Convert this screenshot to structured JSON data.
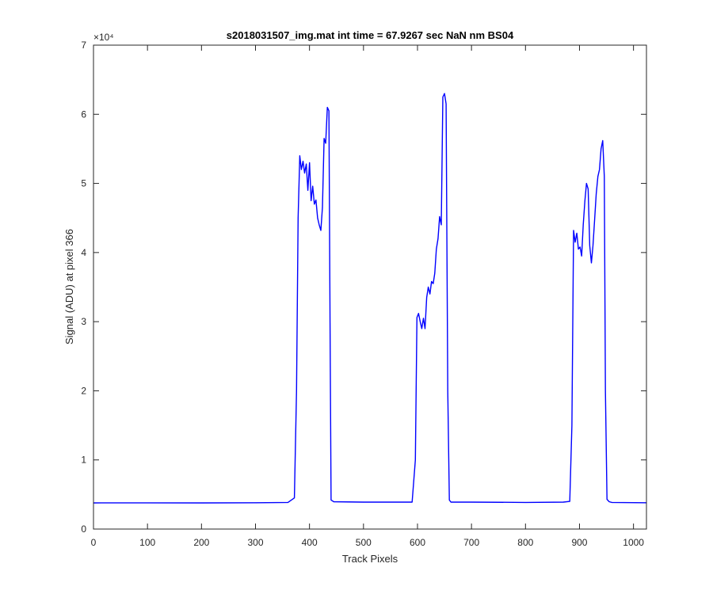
{
  "chart_data": {
    "type": "line",
    "title": "s2018031507_img.mat int time = 67.9267 sec  NaN nm BS04",
    "xlabel": "Track Pixels",
    "ylabel": "Signal (ADU) at pixel 366",
    "y_exponent_label": "×10⁴",
    "xlim": [
      0,
      1024
    ],
    "ylim": [
      0,
      70000
    ],
    "x_ticks": [
      "0",
      "100",
      "200",
      "300",
      "400",
      "500",
      "600",
      "700",
      "800",
      "900",
      "1000"
    ],
    "y_ticks": [
      "0",
      "1",
      "2",
      "3",
      "4",
      "5",
      "6",
      "7"
    ],
    "grid": false,
    "line_color": "#0000ff",
    "series": [
      {
        "x": [
          0,
          100,
          200,
          300,
          360,
          372,
          376,
          379,
          382,
          385,
          388,
          391,
          394,
          397,
          400,
          403,
          406,
          409,
          412,
          415,
          418,
          421,
          424,
          427,
          430,
          433,
          436,
          438,
          440,
          445,
          500,
          560,
          590,
          596,
          599,
          602,
          605,
          608,
          611,
          614,
          617,
          620,
          623,
          626,
          629,
          632,
          635,
          638,
          641,
          644,
          647,
          650,
          653,
          656,
          659,
          662,
          665,
          700,
          800,
          870,
          882,
          886,
          889,
          892,
          895,
          898,
          901,
          904,
          907,
          910,
          913,
          916,
          919,
          922,
          925,
          928,
          931,
          934,
          937,
          940,
          943,
          946,
          948,
          951,
          955,
          960,
          1024
        ],
        "y": [
          3780,
          3790,
          3780,
          3800,
          3850,
          4500,
          20000,
          45000,
          54000,
          52000,
          53200,
          51500,
          52800,
          49000,
          53000,
          47500,
          49600,
          47000,
          47600,
          45000,
          44000,
          43200,
          46500,
          56500,
          55800,
          61000,
          60500,
          30000,
          4200,
          3950,
          3900,
          3890,
          3900,
          10000,
          30600,
          31200,
          30000,
          29000,
          30500,
          29000,
          33500,
          35000,
          34000,
          35800,
          35500,
          37000,
          40500,
          42000,
          45200,
          44000,
          62500,
          63000,
          61500,
          20000,
          4200,
          3900,
          3900,
          3900,
          3850,
          3900,
          4000,
          15000,
          43200,
          41500,
          42800,
          40500,
          40800,
          39500,
          44000,
          47500,
          50000,
          49200,
          41000,
          38500,
          41000,
          44800,
          48500,
          51000,
          52000,
          55000,
          56200,
          51000,
          20000,
          4300,
          3950,
          3850,
          3800
        ]
      }
    ]
  }
}
